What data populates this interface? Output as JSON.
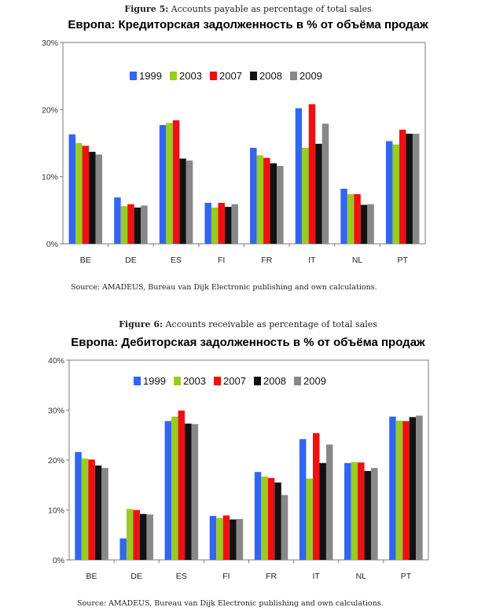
{
  "charts": [
    {
      "caption_label": "Figure 5:",
      "caption_text": "Accounts payable as percentage of total sales",
      "title_ru": "Европа: Кредиторская задолженность в % от объёма продаж",
      "source": "Source: AMADEUS, Bureau van Dijk Electronic publishing and own calculations."
    },
    {
      "caption_label": "Figure 6:",
      "caption_text": "Accounts receivable as percentage of total sales",
      "title_ru": "Европа: Дебиторская задолженность в % от объёма продаж",
      "source": "Source: AMADEUS, Bureau van Dijk Electronic publishing and own calculations."
    }
  ],
  "chart_data": [
    {
      "type": "bar",
      "title": "Европа: Кредиторская задолженность в % от объёма продаж",
      "categories": [
        "BE",
        "DE",
        "ES",
        "FI",
        "FR",
        "IT",
        "NL",
        "PT"
      ],
      "ylim": [
        0,
        30
      ],
      "yticks": [
        0,
        10,
        20,
        30
      ],
      "ytick_labels": [
        "0%",
        "10%",
        "20%",
        "30%"
      ],
      "grid": false,
      "legend_position": "top",
      "series": [
        {
          "name": "1999",
          "color": "#3366ee",
          "values": [
            16.3,
            6.9,
            17.7,
            6.1,
            14.3,
            20.2,
            8.2,
            15.3
          ]
        },
        {
          "name": "2003",
          "color": "#99cc22",
          "values": [
            15.0,
            5.6,
            18.0,
            5.4,
            13.2,
            14.3,
            7.4,
            14.8
          ]
        },
        {
          "name": "2007",
          "color": "#ee1111",
          "values": [
            14.6,
            5.9,
            18.4,
            6.1,
            12.8,
            20.8,
            7.4,
            17.0
          ]
        },
        {
          "name": "2008",
          "color": "#111111",
          "values": [
            13.7,
            5.4,
            12.7,
            5.5,
            12.0,
            14.9,
            5.8,
            16.4
          ]
        },
        {
          "name": "2009",
          "color": "#888888",
          "values": [
            13.3,
            5.7,
            12.4,
            5.9,
            11.6,
            17.9,
            5.9,
            16.4
          ]
        }
      ]
    },
    {
      "type": "bar",
      "title": "Европа: Дебиторская задолженность в % от объёма продаж",
      "categories": [
        "BE",
        "DE",
        "ES",
        "FI",
        "FR",
        "IT",
        "NL",
        "PT"
      ],
      "ylim": [
        0,
        40
      ],
      "yticks": [
        0,
        10,
        20,
        30,
        40
      ],
      "ytick_labels": [
        "0%",
        "10%",
        "20%",
        "30%",
        "40%"
      ],
      "grid": false,
      "legend_position": "top",
      "series": [
        {
          "name": "1999",
          "color": "#3366ee",
          "values": [
            21.6,
            4.3,
            27.8,
            8.8,
            17.6,
            24.2,
            19.4,
            28.7
          ]
        },
        {
          "name": "2003",
          "color": "#99cc22",
          "values": [
            20.3,
            10.2,
            28.7,
            8.4,
            16.7,
            16.3,
            19.6,
            27.9
          ]
        },
        {
          "name": "2007",
          "color": "#ee1111",
          "values": [
            20.1,
            10.0,
            29.9,
            8.9,
            16.4,
            25.4,
            19.5,
            27.8
          ]
        },
        {
          "name": "2008",
          "color": "#111111",
          "values": [
            18.9,
            9.2,
            27.3,
            8.1,
            15.5,
            19.4,
            17.8,
            28.6
          ]
        },
        {
          "name": "2009",
          "color": "#888888",
          "values": [
            18.4,
            9.1,
            27.2,
            8.2,
            13.0,
            23.1,
            18.4,
            28.9
          ]
        }
      ]
    }
  ]
}
